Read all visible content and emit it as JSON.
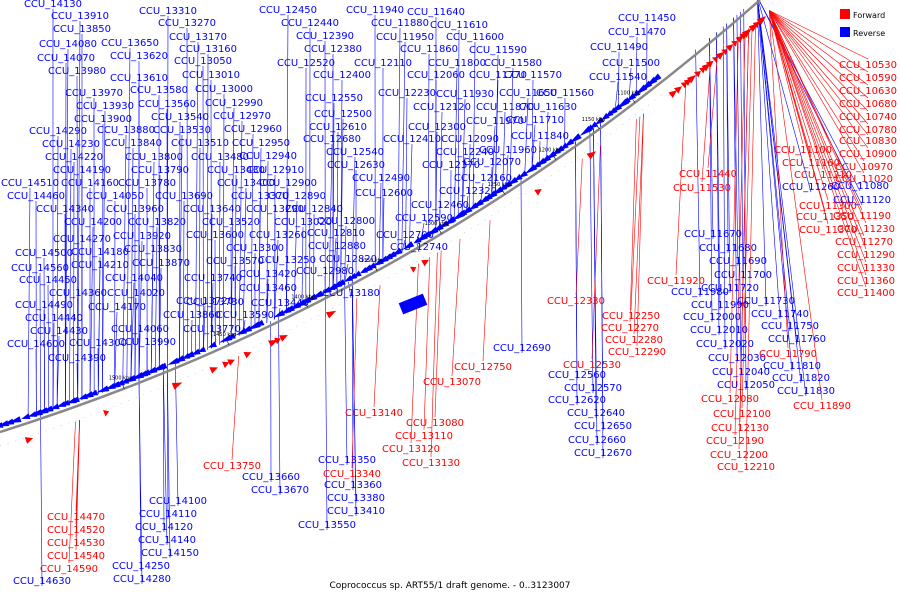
{
  "caption": "Coprococcus sp. ART55/1 draft genome. - 0..3123007",
  "legend": [
    {
      "label": "Forward",
      "color": "#ff0000"
    },
    {
      "label": "Reverse",
      "color": "#0000ff"
    }
  ],
  "colors": {
    "forward": "#ff0000",
    "reverse": "#0000ff",
    "backbone": "#888888",
    "ticks": "#000000"
  },
  "scale_ticks": [
    "1100 kbp",
    "1150 kbp",
    "1200 kbp",
    "1250 kbp",
    "1300 kbp",
    "1350 kbp",
    "1400 kbp",
    "1450 kbp",
    "1500 kbp"
  ],
  "reverse_labels": [
    "CCU_14130",
    "CCU_13910",
    "CCU_13850",
    "CCU_14080",
    "CCU_14070",
    "CCU_13980",
    "CCU_13970",
    "CCU_13930",
    "CCU_13900",
    "CCU_14290",
    "CCU_14230",
    "CCU_14220",
    "CCU_14190",
    "CCU_14510",
    "CCU_14160",
    "CCU_14460",
    "CCU_14340",
    "CCU_14200",
    "CCU_14270",
    "CCU_14500",
    "CCU_14210",
    "CCU_14560",
    "CCU_14180",
    "CCU_14450",
    "CCU_14360",
    "CCU_14490",
    "CCU_14170",
    "CCU_14440",
    "CCU_14430",
    "CCU_14600",
    "CCU_14390",
    "CCU_14300",
    "CCU_13310",
    "CCU_13270",
    "CCU_13170",
    "CCU_13160",
    "CCU_13650",
    "CCU_13620",
    "CCU_13050",
    "CCU_13610",
    "CCU_13010",
    "CCU_13580",
    "CCU_13000",
    "CCU_13560",
    "CCU_12990",
    "CCU_13540",
    "CCU_12970",
    "CCU_13880",
    "CCU_13530",
    "CCU_12960",
    "CCU_13840",
    "CCU_13510",
    "CCU_12950",
    "CCU_13800",
    "CCU_13480",
    "CCU_12940",
    "CCU_13790",
    "CCU_13430",
    "CCU_12910",
    "CCU_13780",
    "CCU_13400",
    "CCU_12900",
    "CCU_14050",
    "CCU_13690",
    "CCU_13370",
    "CCU_12890",
    "CCU_13960",
    "CCU_13640",
    "CCU_13290",
    "CCU_12840",
    "CCU_13820",
    "CCU_13520",
    "CCU_13020",
    "CCU_12800",
    "CCU_13920",
    "CCU_13600",
    "CCU_13260",
    "CCU_12810",
    "CCU_13830",
    "CCU_13300",
    "CCU_12880",
    "CCU_13870",
    "CCU_13250",
    "CCU_12820",
    "CCU_14040",
    "CCU_13570",
    "CCU_13420",
    "CCU_12980",
    "CCU_14020",
    "CCU_13740",
    "CCU_13460",
    "CCU_13730",
    "CCU_13440",
    "CCU_13860",
    "CCU_13590",
    "CCU_13720",
    "CCU_13770",
    "CCU_14060",
    "CCU_13990",
    "CCU_12450",
    "CCU_12440",
    "CCU_12390",
    "CCU_12380",
    "CCU_12520",
    "CCU_12400",
    "CCU_12550",
    "CCU_12500",
    "CCU_12610",
    "CCU_12680",
    "CCU_12540",
    "CCU_12630",
    "CCU_12490",
    "CCU_12600",
    "CCU_12590",
    "CCU_12700",
    "CCU_12740",
    "CCU_13180",
    "CCU_11940",
    "CCU_11640",
    "CCU_11880",
    "CCU_11610",
    "CCU_11950",
    "CCU_11600",
    "CCU_11860",
    "CCU_11590",
    "CCU_12110",
    "CCU_11800",
    "CCU_11580",
    "CCU_12060",
    "CCU_11770",
    "CCU_11570",
    "CCU_12230",
    "CCU_11930",
    "CCU_11650",
    "CCU_11560",
    "CCU_12120",
    "CCU_11870",
    "CCU_11630",
    "CCU_12300",
    "CCU_11970",
    "CCU_11710",
    "CCU_12410",
    "CCU_12090",
    "CCU_11840",
    "CCU_12240",
    "CCU_11960",
    "CCU_12370",
    "CCU_12070",
    "CCU_12160",
    "CCU_12320",
    "CCU_12460",
    "CCU_11450",
    "CCU_11470",
    "CCU_11490",
    "CCU_11500",
    "CCU_11540",
    "CCU_11670",
    "CCU_11680",
    "CCU_11690",
    "CCU_11700",
    "CCU_11720",
    "CCU_11730",
    "CCU_11740",
    "CCU_11750",
    "CCU_11760",
    "CCU_11980",
    "CCU_11990",
    "CCU_12000",
    "CCU_12010",
    "CCU_12020",
    "CCU_12030",
    "CCU_12040",
    "CCU_12050",
    "CCU_11810",
    "CCU_11820",
    "CCU_11830",
    "CCU_12690",
    "CCU_12560",
    "CCU_12570",
    "CCU_12620",
    "CCU_12640",
    "CCU_12650",
    "CCU_12660",
    "CCU_12670",
    "CCU_11080",
    "CCU_11120",
    "CCU_11260",
    "CCU_13660",
    "CCU_13670",
    "CCU_13350",
    "CCU_13360",
    "CCU_13380",
    "CCU_13410",
    "CCU_13550",
    "CCU_14100",
    "CCU_14110",
    "CCU_14120",
    "CCU_14140",
    "CCU_14150",
    "CCU_14250",
    "CCU_14280",
    "CCU_14630"
  ],
  "forward_labels": [
    "CCU_10530",
    "CCU_10590",
    "CCU_10630",
    "CCU_10680",
    "CCU_10740",
    "CCU_10780",
    "CCU_10830",
    "CCU_11100",
    "CCU_10900",
    "CCU_11160",
    "CCU_10970",
    "CCU_11210",
    "CCU_11020",
    "CCU_11300",
    "CCU_11190",
    "CCU_11350",
    "CCU_11230",
    "CCU_11370",
    "CCU_11270",
    "CCU_11290",
    "CCU_11330",
    "CCU_11360",
    "CCU_11400",
    "CCU_11440",
    "CCU_11530",
    "CCU_11920",
    "CCU_11790",
    "CCU_11890",
    "CCU_12330",
    "CCU_12250",
    "CCU_12270",
    "CCU_12280",
    "CCU_12290",
    "CCU_12530",
    "CCU_12750",
    "CCU_12080",
    "CCU_12100",
    "CCU_12130",
    "CCU_12190",
    "CCU_12200",
    "CCU_12210",
    "CCU_13070",
    "CCU_13140",
    "CCU_13080",
    "CCU_13110",
    "CCU_13120",
    "CCU_13130",
    "CCU_13340",
    "CCU_13750",
    "CCU_14470",
    "CCU_14520",
    "CCU_14530",
    "CCU_14540",
    "CCU_14590"
  ]
}
